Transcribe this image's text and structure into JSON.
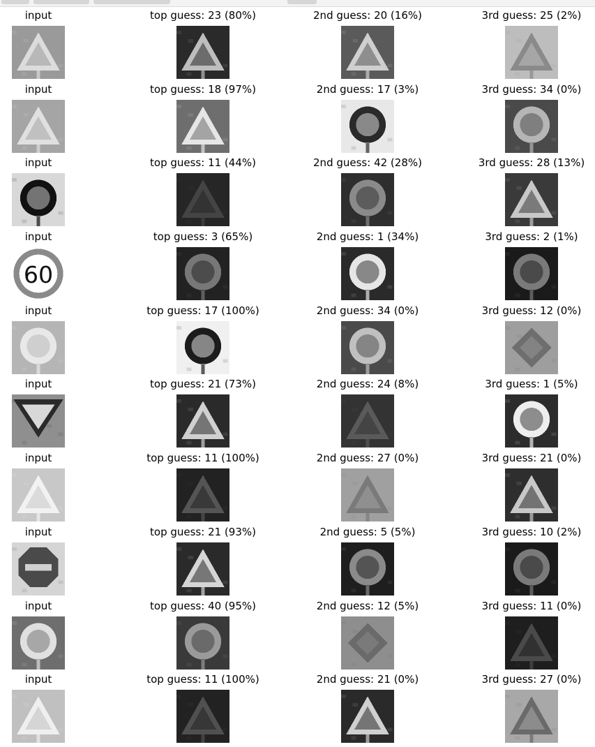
{
  "rows": [
    {
      "cells": [
        {
          "label": "input",
          "icon": "warning-triangle-sign-photo",
          "bg": "#9a9a9a",
          "sign": "#dcdcdc",
          "shape": "triangle"
        },
        {
          "label": "top guess: 23 (80%)",
          "icon": "triangle-sign-icon",
          "bg": "#2a2a2a",
          "sign": "#bdbdbd",
          "shape": "triangle"
        },
        {
          "label": "2nd guess: 20 (16%)",
          "icon": "triangle-sign-icon",
          "bg": "#5a5a5a",
          "sign": "#cfcfcf",
          "shape": "triangle"
        },
        {
          "label": "3rd guess: 25 (2%)",
          "icon": "triangle-sign-icon",
          "bg": "#bdbdbd",
          "sign": "#8a8a8a",
          "shape": "triangle"
        }
      ]
    },
    {
      "cells": [
        {
          "label": "input",
          "icon": "warning-triangle-sign-photo",
          "bg": "#a5a5a5",
          "sign": "#e0e0e0",
          "shape": "triangle"
        },
        {
          "label": "top guess: 18 (97%)",
          "icon": "exclamation-triangle-sign-icon",
          "bg": "#6e6e6e",
          "sign": "#e6e6e6",
          "shape": "triangle"
        },
        {
          "label": "2nd guess: 17 (3%)",
          "icon": "no-entry-sign-icon",
          "bg": "#e8e8e8",
          "sign": "#2a2a2a",
          "shape": "circle"
        },
        {
          "label": "3rd guess: 34 (0%)",
          "icon": "turn-left-sign-icon",
          "bg": "#4a4a4a",
          "sign": "#b5b5b5",
          "shape": "circle"
        }
      ]
    },
    {
      "cells": [
        {
          "label": "input",
          "icon": "turn-right-sign-photo",
          "bg": "#d8d8d8",
          "sign": "#111111",
          "shape": "circle"
        },
        {
          "label": "top guess: 11 (44%)",
          "icon": "triangle-sign-icon",
          "bg": "#262626",
          "sign": "#444444",
          "shape": "triangle"
        },
        {
          "label": "2nd guess: 42 (28%)",
          "icon": "end-restriction-sign-icon",
          "bg": "#2e2e2e",
          "sign": "#8a8a8a",
          "shape": "circle"
        },
        {
          "label": "3rd guess: 28 (13%)",
          "icon": "triangle-sign-icon",
          "bg": "#3a3a3a",
          "sign": "#c8c8c8",
          "shape": "triangle"
        }
      ]
    },
    {
      "cells": [
        {
          "label": "input",
          "icon": "speed-limit-60-sign-photo",
          "bg": "#ffffff",
          "sign": "#ffffff",
          "shape": "speed"
        },
        {
          "label": "top guess: 3 (65%)",
          "icon": "speed-limit-sign-icon",
          "bg": "#222222",
          "sign": "#777777",
          "shape": "circle"
        },
        {
          "label": "2nd guess: 1 (34%)",
          "icon": "speed-limit-sign-icon",
          "bg": "#2a2a2a",
          "sign": "#e6e6e6",
          "shape": "circle"
        },
        {
          "label": "3rd guess: 2 (1%)",
          "icon": "speed-limit-sign-icon",
          "bg": "#1a1a1a",
          "sign": "#7a7a7a",
          "shape": "circle"
        }
      ]
    },
    {
      "cells": [
        {
          "label": "input",
          "icon": "no-vehicles-sign-photo",
          "bg": "#b5b5b5",
          "sign": "#e8e8e8",
          "shape": "circle"
        },
        {
          "label": "top guess: 17 (100%)",
          "icon": "no-entry-sign-icon",
          "bg": "#f0f0f0",
          "sign": "#1c1c1c",
          "shape": "circle"
        },
        {
          "label": "2nd guess: 34 (0%)",
          "icon": "turn-left-sign-icon",
          "bg": "#4a4a4a",
          "sign": "#c0c0c0",
          "shape": "circle"
        },
        {
          "label": "3rd guess: 12 (0%)",
          "icon": "priority-road-sign-icon",
          "bg": "#9e9e9e",
          "sign": "#6e6e6e",
          "shape": "diamond"
        }
      ]
    },
    {
      "cells": [
        {
          "label": "input",
          "icon": "yield-sign-photo",
          "bg": "#8f8f8f",
          "sign": "#2a2a2a",
          "shape": "yield"
        },
        {
          "label": "top guess: 21 (73%)",
          "icon": "triangle-sign-icon",
          "bg": "#2a2a2a",
          "sign": "#d0d0d0",
          "shape": "triangle"
        },
        {
          "label": "2nd guess: 24 (8%)",
          "icon": "triangle-sign-icon",
          "bg": "#333333",
          "sign": "#5a5a5a",
          "shape": "triangle"
        },
        {
          "label": "3rd guess: 1 (5%)",
          "icon": "speed-limit-sign-icon",
          "bg": "#2c2c2c",
          "sign": "#eeeeee",
          "shape": "circle"
        }
      ]
    },
    {
      "cells": [
        {
          "label": "input",
          "icon": "pedestrian-triangle-sign-photo",
          "bg": "#c8c8c8",
          "sign": "#f2f2f2",
          "shape": "triangle"
        },
        {
          "label": "top guess: 11 (100%)",
          "icon": "triangle-sign-icon",
          "bg": "#222222",
          "sign": "#555555",
          "shape": "triangle"
        },
        {
          "label": "2nd guess: 27 (0%)",
          "icon": "pedestrian-triangle-sign-icon",
          "bg": "#a0a0a0",
          "sign": "#7a7a7a",
          "shape": "triangle"
        },
        {
          "label": "3rd guess: 21 (0%)",
          "icon": "triangle-sign-icon",
          "bg": "#2e2e2e",
          "sign": "#c8c8c8",
          "shape": "triangle"
        }
      ]
    },
    {
      "cells": [
        {
          "label": "input",
          "icon": "stop-sign-photo",
          "bg": "#d5d5d5",
          "sign": "#4a4a4a",
          "shape": "octagon"
        },
        {
          "label": "top guess: 21 (93%)",
          "icon": "triangle-sign-icon",
          "bg": "#2a2a2a",
          "sign": "#d5d5d5",
          "shape": "triangle"
        },
        {
          "label": "2nd guess: 5 (5%)",
          "icon": "speed-limit-sign-icon",
          "bg": "#1e1e1e",
          "sign": "#8a8a8a",
          "shape": "circle"
        },
        {
          "label": "3rd guess: 10 (2%)",
          "icon": "no-passing-sign-icon",
          "bg": "#1a1a1a",
          "sign": "#7a7a7a",
          "shape": "circle"
        }
      ]
    },
    {
      "cells": [
        {
          "label": "input",
          "icon": "roundabout-sign-photo",
          "bg": "#6e6e6e",
          "sign": "#e0e0e0",
          "shape": "circle"
        },
        {
          "label": "top guess: 40 (95%)",
          "icon": "roundabout-sign-icon",
          "bg": "#3a3a3a",
          "sign": "#9a9a9a",
          "shape": "circle"
        },
        {
          "label": "2nd guess: 12 (5%)",
          "icon": "priority-road-sign-icon",
          "bg": "#8e8e8e",
          "sign": "#6a6a6a",
          "shape": "diamond"
        },
        {
          "label": "3rd guess: 11 (0%)",
          "icon": "triangle-sign-icon",
          "bg": "#1e1e1e",
          "sign": "#4a4a4a",
          "shape": "triangle"
        }
      ]
    },
    {
      "cells": [
        {
          "label": "input",
          "icon": "pedestrian-triangle-sign-photo",
          "bg": "#c0c0c0",
          "sign": "#efefef",
          "shape": "triangle"
        },
        {
          "label": "top guess: 11 (100%)",
          "icon": "triangle-sign-icon",
          "bg": "#222222",
          "sign": "#505050",
          "shape": "triangle"
        },
        {
          "label": "2nd guess: 21 (0%)",
          "icon": "triangle-sign-icon",
          "bg": "#2a2a2a",
          "sign": "#d0d0d0",
          "shape": "triangle"
        },
        {
          "label": "3rd guess: 27 (0%)",
          "icon": "pedestrian-triangle-sign-icon",
          "bg": "#a8a8a8",
          "sign": "#6a6a6a",
          "shape": "triangle"
        }
      ]
    }
  ]
}
